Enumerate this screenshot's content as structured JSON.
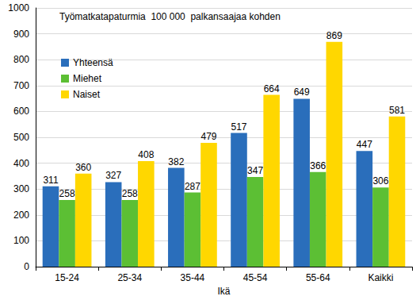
{
  "chart_data": {
    "type": "bar",
    "title": "Työmatkatapaturmia  100 000  palkansaajaa kohden",
    "x_label": "Ikä",
    "categories": [
      "15-24",
      "25-34",
      "35-44",
      "45-54",
      "55-64",
      "Kaikki"
    ],
    "series": [
      {
        "name": "Yhteensä",
        "color": "#2a6ebb",
        "values": [
          311,
          327,
          382,
          517,
          649,
          447
        ]
      },
      {
        "name": "Miehet",
        "color": "#5cbf34",
        "values": [
          258,
          258,
          287,
          347,
          366,
          306
        ]
      },
      {
        "name": "Naiset",
        "color": "#ffd700",
        "values": [
          360,
          408,
          479,
          664,
          869,
          581
        ]
      }
    ],
    "ylim": [
      0,
      1000
    ],
    "yticks": [
      0,
      100,
      200,
      300,
      400,
      500,
      600,
      700,
      800,
      900,
      1000
    ],
    "grid": true,
    "legend": "upper left",
    "data_labels": true
  }
}
